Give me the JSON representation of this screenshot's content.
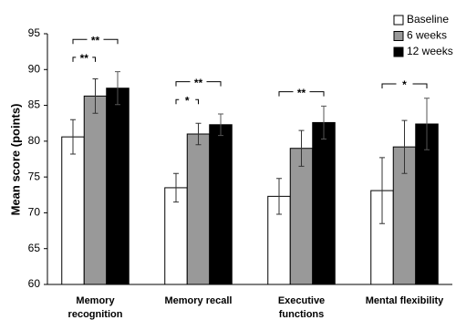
{
  "chart_data": {
    "type": "bar",
    "y_label": "Mean score (points)",
    "categories": [
      "Memory\nrecognition",
      "Memory recall",
      "Executive\nfunctions",
      "Mental flexibility"
    ],
    "series": [
      {
        "name": "Baseline",
        "color": "#ffffff",
        "values": [
          80.6,
          73.5,
          72.3,
          73.1
        ],
        "errors": [
          2.4,
          2.0,
          2.5,
          4.6
        ]
      },
      {
        "name": "6 weeks",
        "color": "#999999",
        "values": [
          86.3,
          81.0,
          79.0,
          79.2
        ],
        "errors": [
          2.4,
          1.5,
          2.5,
          3.7
        ]
      },
      {
        "name": "12 weeks",
        "color": "#000000",
        "values": [
          87.4,
          82.3,
          82.6,
          82.4
        ],
        "errors": [
          2.3,
          1.5,
          2.3,
          3.6
        ]
      }
    ],
    "brackets": [
      {
        "label": "**",
        "category": 0,
        "from": 0,
        "to": 1
      },
      {
        "label": "**",
        "category": 0,
        "from": 0,
        "to": 2
      },
      {
        "label": "*",
        "category": 1,
        "from": 0,
        "to": 1
      },
      {
        "label": "**",
        "category": 1,
        "from": 0,
        "to": 2
      },
      {
        "label": "**",
        "category": 2,
        "from": 0,
        "to": 2
      },
      {
        "label": "*",
        "category": 3,
        "from": 0,
        "to": 2
      }
    ],
    "ylim": [
      60,
      95
    ],
    "yticks": [
      60,
      65,
      70,
      75,
      80,
      85,
      90,
      95
    ],
    "grid": false,
    "legend": "upper right"
  }
}
